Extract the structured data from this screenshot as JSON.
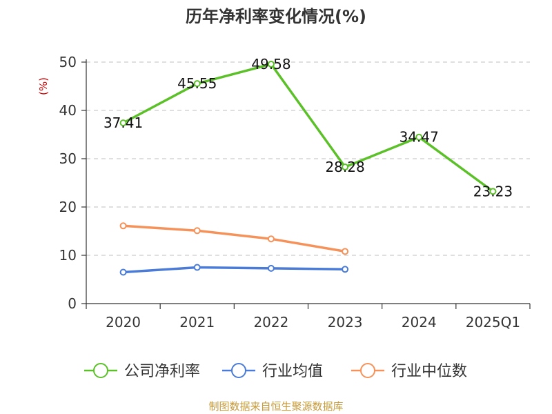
{
  "chart_data": {
    "type": "line",
    "title": "历年净利率变化情况(%)",
    "ylabel": "(%)",
    "categories": [
      "2020",
      "2021",
      "2022",
      "2023",
      "2024",
      "2025Q1"
    ],
    "ylim": [
      0,
      50
    ],
    "yticks": [
      "0",
      "10",
      "20",
      "30",
      "40",
      "50"
    ],
    "grid": true,
    "legend_position": "bottom",
    "series": [
      {
        "name": "公司净利率",
        "color": "#5cc029",
        "values": [
          37.41,
          45.55,
          49.58,
          28.28,
          34.47,
          23.23
        ],
        "labels": [
          "37.41",
          "45.55",
          "49.58",
          "28.28",
          "34.47",
          "23.23"
        ]
      },
      {
        "name": "行业均值",
        "color": "#4a7bd6",
        "values": [
          6.5,
          7.5,
          7.3,
          7.1,
          null,
          null
        ]
      },
      {
        "name": "行业中位数",
        "color": "#f5925a",
        "values": [
          16.1,
          15.1,
          13.4,
          10.8,
          null,
          null
        ]
      }
    ]
  },
  "colors": {
    "title": "#333333",
    "ylabel": "#cc0000",
    "source": "#c79a3a",
    "grid": "#cccccc"
  },
  "footer": {
    "source": "制图数据来自恒生聚源数据库"
  }
}
